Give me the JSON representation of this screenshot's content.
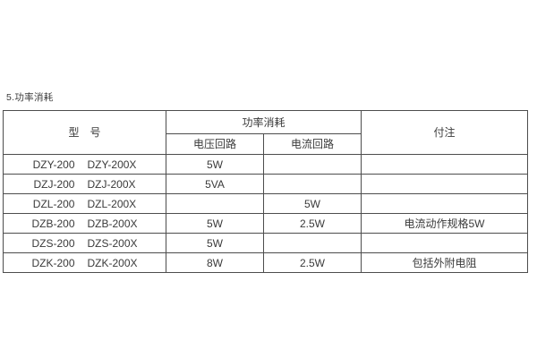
{
  "page": {
    "section_title": "5.功率消耗"
  },
  "table": {
    "headers": {
      "model": "型　号",
      "power_group": "功率消耗",
      "voltage_circuit": "电压回路",
      "current_circuit": "电流回路",
      "note": "付注"
    },
    "rows": [
      {
        "model": [
          "DZY-200",
          "DZY-200X"
        ],
        "voltage": "5W",
        "current": "",
        "note": ""
      },
      {
        "model": [
          "DZJ-200",
          "DZJ-200X"
        ],
        "voltage": "5VA",
        "current": "",
        "note": ""
      },
      {
        "model": [
          "DZL-200",
          "DZL-200X"
        ],
        "voltage": "",
        "current": "5W",
        "note": ""
      },
      {
        "model": [
          "DZB-200",
          "DZB-200X"
        ],
        "voltage": "5W",
        "current": "2.5W",
        "note": "电流动作规格5W"
      },
      {
        "model": [
          "DZS-200",
          "DZS-200X"
        ],
        "voltage": "5W",
        "current": "",
        "note": ""
      },
      {
        "model": [
          "DZK-200",
          "DZK-200X"
        ],
        "voltage": "8W",
        "current": "2.5W",
        "note": "包括外附电阻"
      }
    ]
  },
  "colors": {
    "text": "#3a3a3a",
    "border": "#4d4d4d",
    "background": "#ffffff"
  }
}
